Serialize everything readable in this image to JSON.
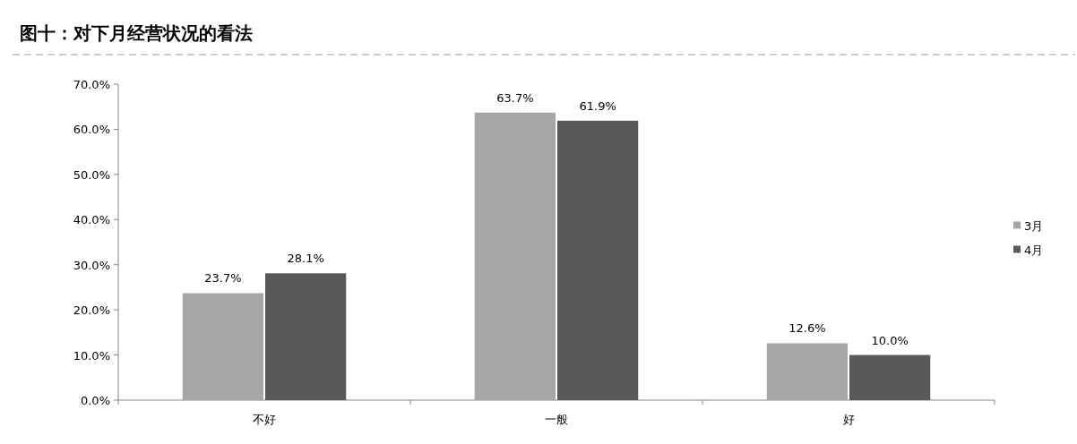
{
  "chart_data": {
    "type": "bar",
    "title": "图十：对下月经营状况的看法",
    "categories": [
      "不好",
      "一般",
      "好"
    ],
    "series": [
      {
        "name": "3月",
        "color": "#a6a6a6",
        "values": [
          23.7,
          63.7,
          12.6
        ],
        "value_labels": [
          "23.7%",
          "63.7%",
          "12.6%"
        ]
      },
      {
        "name": "4月",
        "color": "#595959",
        "values": [
          28.1,
          61.9,
          10.0
        ],
        "value_labels": [
          "28.1%",
          "61.9%",
          "10.0%"
        ]
      }
    ],
    "ylim": [
      0,
      70
    ],
    "yticks": [
      {
        "value": 0,
        "label": "0.0%"
      },
      {
        "value": 10,
        "label": "10.0%"
      },
      {
        "value": 20,
        "label": "20.0%"
      },
      {
        "value": 30,
        "label": "30.0%"
      },
      {
        "value": 40,
        "label": "40.0%"
      },
      {
        "value": 50,
        "label": "50.0%"
      },
      {
        "value": 60,
        "label": "60.0%"
      },
      {
        "value": 70,
        "label": "70.0%"
      }
    ],
    "grid": false,
    "legend": "right"
  }
}
